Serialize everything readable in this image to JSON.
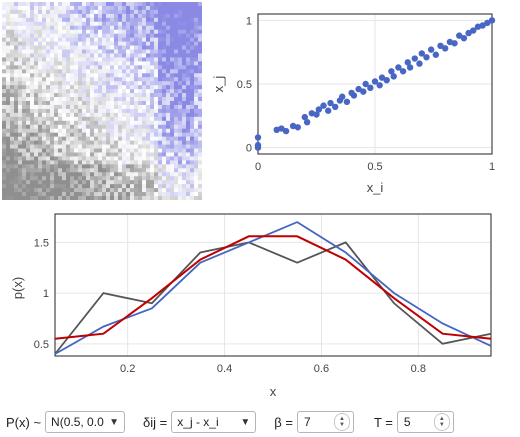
{
  "heatmap": {
    "rows": 50,
    "cols": 50,
    "colors": {
      "positive": "#3b3bd9",
      "negative": "#3a3a3a"
    }
  },
  "scatter": {
    "xlabel": "x_i",
    "ylabel": "x_j",
    "x_ticks": [
      "0",
      "0.5",
      "1"
    ],
    "y_ticks": [
      "0",
      "0.5",
      "1"
    ],
    "xlim": [
      0,
      1
    ],
    "ylim": [
      -0.05,
      1.05
    ],
    "point_color": "#4a66c4",
    "chart_data": {
      "type": "scatter",
      "x": [
        0.0,
        0.0,
        0.0,
        0.08,
        0.1,
        0.12,
        0.15,
        0.17,
        0.2,
        0.21,
        0.23,
        0.25,
        0.26,
        0.28,
        0.3,
        0.31,
        0.33,
        0.35,
        0.36,
        0.38,
        0.4,
        0.41,
        0.43,
        0.45,
        0.46,
        0.48,
        0.5,
        0.52,
        0.53,
        0.55,
        0.57,
        0.58,
        0.6,
        0.62,
        0.64,
        0.65,
        0.67,
        0.69,
        0.7,
        0.72,
        0.74,
        0.76,
        0.78,
        0.8,
        0.82,
        0.84,
        0.86,
        0.88,
        0.9,
        0.92,
        0.94,
        0.96,
        0.98,
        1.0
      ],
      "y": [
        0.0,
        0.02,
        0.08,
        0.14,
        0.15,
        0.13,
        0.17,
        0.16,
        0.24,
        0.2,
        0.27,
        0.26,
        0.3,
        0.33,
        0.29,
        0.35,
        0.32,
        0.37,
        0.4,
        0.36,
        0.43,
        0.41,
        0.46,
        0.44,
        0.5,
        0.47,
        0.52,
        0.49,
        0.55,
        0.53,
        0.6,
        0.56,
        0.63,
        0.6,
        0.67,
        0.63,
        0.7,
        0.66,
        0.74,
        0.71,
        0.77,
        0.73,
        0.8,
        0.78,
        0.83,
        0.82,
        0.88,
        0.86,
        0.9,
        0.92,
        0.95,
        0.96,
        0.98,
        1.0
      ]
    }
  },
  "linechart": {
    "xlabel": "x",
    "ylabel": "p(x)",
    "x_ticks": [
      "0.2",
      "0.4",
      "0.6",
      "0.8"
    ],
    "y_ticks": [
      "0.5",
      "1",
      "1.5"
    ],
    "chart_data": {
      "type": "line",
      "xlim": [
        0.05,
        0.95
      ],
      "ylim": [
        0.38,
        1.78
      ],
      "series": [
        {
          "color": "#555555",
          "x": [
            0.05,
            0.15,
            0.25,
            0.35,
            0.45,
            0.55,
            0.65,
            0.75,
            0.85,
            0.95
          ],
          "y": [
            0.4,
            1.0,
            0.9,
            1.4,
            1.5,
            1.3,
            1.5,
            0.9,
            0.5,
            0.6
          ]
        },
        {
          "color": "#4566c0",
          "x": [
            0.05,
            0.15,
            0.25,
            0.35,
            0.45,
            0.55,
            0.65,
            0.75,
            0.85,
            0.95
          ],
          "y": [
            0.4,
            0.67,
            0.85,
            1.3,
            1.5,
            1.7,
            1.4,
            1.0,
            0.7,
            0.48
          ]
        },
        {
          "color": "#c00000",
          "x": [
            0.05,
            0.15,
            0.25,
            0.35,
            0.45,
            0.55,
            0.65,
            0.75,
            0.85,
            0.95
          ],
          "y": [
            0.55,
            0.6,
            0.95,
            1.33,
            1.56,
            1.56,
            1.33,
            0.95,
            0.6,
            0.55
          ]
        }
      ]
    }
  },
  "controls": {
    "px_label": "P(x) ~",
    "px_value": "N(0.5, 0.0",
    "delta_label": "δij =",
    "delta_value": "x_j - x_i",
    "beta_label": "β =",
    "beta_value": "7",
    "t_label": "T =",
    "t_value": "5"
  }
}
